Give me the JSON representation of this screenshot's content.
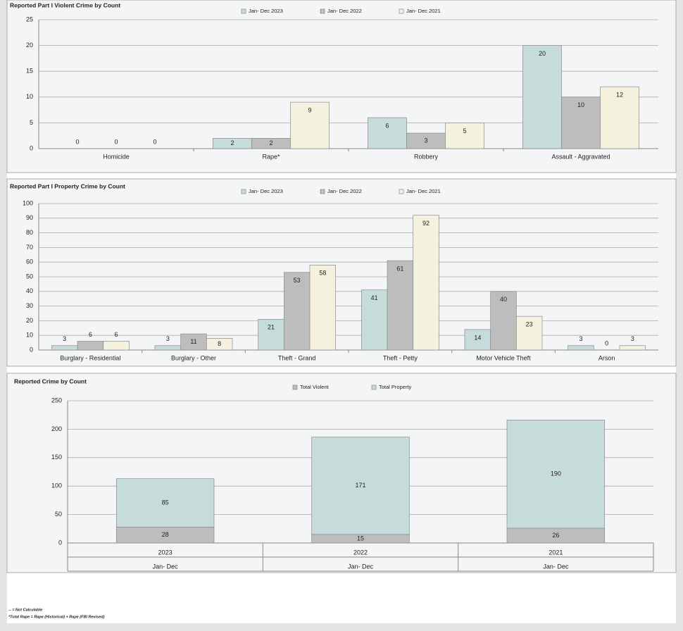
{
  "chart_data": [
    {
      "type": "bar",
      "title": "Reported Part I Violent Crime by Count",
      "categories": [
        "Homicide",
        "Rape*",
        "Robbery",
        "Assault - Aggravated"
      ],
      "series": [
        {
          "name": "Jan- Dec 2023",
          "color": "#c6dcda",
          "values": [
            0,
            2,
            6,
            20
          ]
        },
        {
          "name": "Jan- Dec 2022",
          "color": "#bdbdbd",
          "values": [
            0,
            2,
            3,
            10
          ]
        },
        {
          "name": "Jan- Dec 2021",
          "color": "#f5f1df",
          "values": [
            0,
            9,
            5,
            12
          ]
        }
      ],
      "ylim": [
        0,
        25
      ],
      "yticks": [
        0,
        5,
        10,
        15,
        20,
        25
      ],
      "grid": true
    },
    {
      "type": "bar",
      "title": "Reported Part I Property Crime by  Count",
      "categories": [
        "Burglary - Residential",
        "Burglary - Other",
        "Theft - Grand",
        "Theft - Petty",
        "Motor Vehicle Theft",
        "Arson"
      ],
      "series": [
        {
          "name": "Jan- Dec 2023",
          "color": "#c6dcda",
          "values": [
            3,
            3,
            21,
            41,
            14,
            3
          ]
        },
        {
          "name": "Jan- Dec 2022",
          "color": "#bdbdbd",
          "values": [
            6,
            11,
            53,
            61,
            40,
            0
          ]
        },
        {
          "name": "Jan- Dec 2021",
          "color": "#f5f1df",
          "values": [
            6,
            8,
            58,
            92,
            23,
            3
          ]
        }
      ],
      "ylim": [
        0,
        100
      ],
      "yticks": [
        0,
        10,
        20,
        30,
        40,
        50,
        60,
        70,
        80,
        90,
        100
      ],
      "grid": true
    },
    {
      "type": "stacked-bar",
      "title": "Reported Crime by Count",
      "categories": [
        "2023",
        "2022",
        "2021"
      ],
      "subcategories": [
        "Jan- Dec",
        "Jan- Dec",
        "Jan- Dec"
      ],
      "series": [
        {
          "name": "Total Violent",
          "color": "#bdbdbd",
          "values": [
            28,
            15,
            26
          ]
        },
        {
          "name": "Total Property",
          "color": "#c6dcda",
          "values": [
            85,
            171,
            190
          ]
        }
      ],
      "ylim": [
        0,
        250
      ],
      "yticks": [
        0,
        50,
        100,
        150,
        200,
        250
      ],
      "grid": true
    }
  ],
  "footnotes": [
    "-- = Not Calculable",
    "*Total Rape = Rape (Historical) + Rape (FBI Revised)"
  ]
}
